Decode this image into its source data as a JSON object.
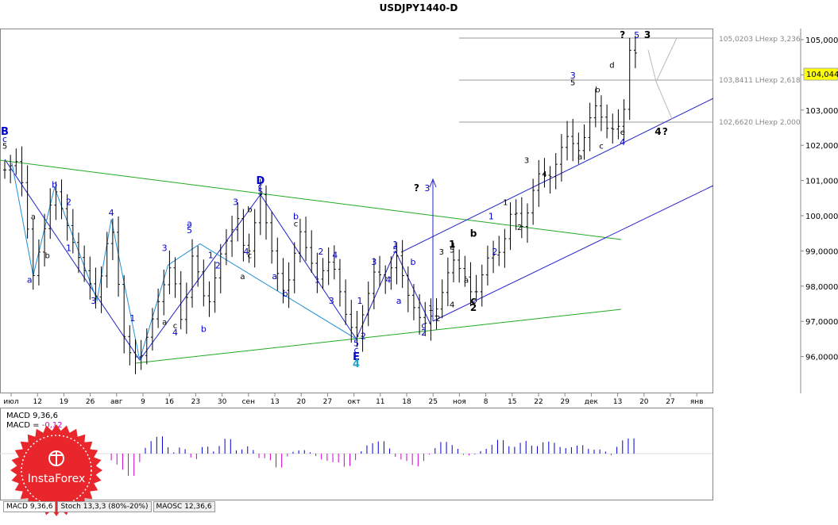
{
  "title": "USDJPY1440-D",
  "price_labels": [
    "105,0000",
    "104,0000",
    "103,0000",
    "102,0000",
    "101,0000",
    "100,0000",
    "99,0000",
    "98,0000",
    "97,0000",
    "96,0000"
  ],
  "current_price": "104,044",
  "date_labels": [
    "июл",
    "12",
    "19",
    "26",
    "авг",
    "9",
    "16",
    "23",
    "30",
    "сен",
    "13",
    "20",
    "27",
    "окт",
    "11",
    "18",
    "25",
    "ноя",
    "8",
    "15",
    "22",
    "29",
    "дек",
    "13",
    "20",
    "27",
    "янв"
  ],
  "fib_levels": [
    {
      "label": "105,0203 LНexp 3,236",
      "price": 105.0203
    },
    {
      "label": "103,8411 LНexp 2,618",
      "price": 103.8411
    },
    {
      "label": "102,6620 LНexp 2,000",
      "price": 102.662
    }
  ],
  "macd": {
    "line1": "MACD 9,36,6",
    "line2_prefix": "MACD = ",
    "line2_value": "-0,12"
  },
  "tabs": [
    "MACD 9,36,6",
    "Stoch 13,3,3 (80%-20%)",
    "MAOSC 12,36,6"
  ],
  "logo_text": "InstaForex",
  "colors": {
    "accent": "#cc0000",
    "wave": "#0000cc",
    "zigzag": "#1f8fd6",
    "trend_green": "#22aa22",
    "up_bar": "#0000cc",
    "down_bar": "#cc00cc"
  },
  "wave_labels": [
    {
      "t": "B",
      "d": 0,
      "p": 102.3,
      "c": "#0000cc",
      "s": 13
    },
    {
      "t": "c",
      "d": 0,
      "p": 102.1,
      "c": "#0000cc",
      "s": 11
    },
    {
      "t": "5",
      "d": 0,
      "p": 101.9,
      "c": "#000",
      "s": 10
    },
    {
      "t": "b",
      "d": 14,
      "p": 100.8,
      "c": "#0000cc",
      "s": 11
    },
    {
      "t": "2",
      "d": 18,
      "p": 100.3,
      "c": "#0000cc",
      "s": 11
    },
    {
      "t": "4",
      "d": 30,
      "p": 100.0,
      "c": "#0000cc",
      "s": 11
    },
    {
      "t": "a",
      "d": 8,
      "p": 99.9,
      "c": "#000",
      "s": 10
    },
    {
      "t": "b",
      "d": 12,
      "p": 98.8,
      "c": "#000",
      "s": 10
    },
    {
      "t": "1",
      "d": 18,
      "p": 99.0,
      "c": "#0000cc",
      "s": 11
    },
    {
      "t": "a",
      "d": 7,
      "p": 98.1,
      "c": "#0000cc",
      "s": 11
    },
    {
      "t": "3",
      "d": 25,
      "p": 97.5,
      "c": "#0000cc",
      "s": 11
    },
    {
      "t": "1",
      "d": 36,
      "p": 97.0,
      "c": "#0000cc",
      "s": 11
    },
    {
      "t": "3",
      "d": 45,
      "p": 99.0,
      "c": "#0000cc",
      "s": 11
    },
    {
      "t": "a",
      "d": 45,
      "p": 96.9,
      "c": "#000",
      "s": 10
    },
    {
      "t": "c",
      "d": 48,
      "p": 96.8,
      "c": "#000",
      "s": 10
    },
    {
      "t": "4",
      "d": 48,
      "p": 96.6,
      "c": "#0000cc",
      "s": 11
    },
    {
      "t": "a",
      "d": 52,
      "p": 99.7,
      "c": "#0000cc",
      "s": 11
    },
    {
      "t": "5",
      "d": 52,
      "p": 99.5,
      "c": "#0000cc",
      "s": 11
    },
    {
      "t": "1",
      "d": 58,
      "p": 98.8,
      "c": "#0000cc",
      "s": 11
    },
    {
      "t": "b",
      "d": 56,
      "p": 96.7,
      "c": "#0000cc",
      "s": 11
    },
    {
      "t": "2",
      "d": 60,
      "p": 98.5,
      "c": "#0000cc",
      "s": 11
    },
    {
      "t": "3",
      "d": 65,
      "p": 100.3,
      "c": "#0000cc",
      "s": 11
    },
    {
      "t": "4",
      "d": 68,
      "p": 98.9,
      "c": "#0000cc",
      "s": 11
    },
    {
      "t": "a",
      "d": 67,
      "p": 98.2,
      "c": "#000",
      "s": 10
    },
    {
      "t": "b",
      "d": 69,
      "p": 100.1,
      "c": "#000",
      "s": 10
    },
    {
      "t": "c",
      "d": 69,
      "p": 98.8,
      "c": "#000",
      "s": 10
    },
    {
      "t": "D",
      "d": 72,
      "p": 100.9,
      "c": "#0000cc",
      "s": 13
    },
    {
      "t": "c",
      "d": 72,
      "p": 100.75,
      "c": "#0000cc",
      "s": 11
    },
    {
      "t": "5",
      "d": 72,
      "p": 100.6,
      "c": "#0000cc",
      "s": 11
    },
    {
      "t": "a",
      "d": 76,
      "p": 98.2,
      "c": "#0000cc",
      "s": 11
    },
    {
      "t": "b",
      "d": 82,
      "p": 99.9,
      "c": "#0000cc",
      "s": 11
    },
    {
      "t": "c",
      "d": 82,
      "p": 99.7,
      "c": "#000",
      "s": 10
    },
    {
      "t": "b",
      "d": 79,
      "p": 97.7,
      "c": "#0000cc",
      "s": 11
    },
    {
      "t": "1",
      "d": 88,
      "p": 98.1,
      "c": "#0000cc",
      "s": 11
    },
    {
      "t": "2",
      "d": 89,
      "p": 98.9,
      "c": "#0000cc",
      "s": 11
    },
    {
      "t": "4",
      "d": 93,
      "p": 98.8,
      "c": "#0000cc",
      "s": 11
    },
    {
      "t": "3",
      "d": 92,
      "p": 97.5,
      "c": "#0000cc",
      "s": 11
    },
    {
      "t": "5",
      "d": 99,
      "p": 96.3,
      "c": "#0000cc",
      "s": 11
    },
    {
      "t": "c",
      "d": 99,
      "p": 96.1,
      "c": "#0000cc",
      "s": 11
    },
    {
      "t": "E",
      "d": 99,
      "p": 95.9,
      "c": "#0000cc",
      "s": 13
    },
    {
      "t": "4",
      "d": 99,
      "p": 95.7,
      "c": "#22a0c8",
      "s": 13
    },
    {
      "t": "1",
      "d": 100,
      "p": 97.5,
      "c": "#0000cc",
      "s": 11
    },
    {
      "t": "2",
      "d": 101,
      "p": 96.5,
      "c": "#0000cc",
      "s": 11
    },
    {
      "t": "3",
      "d": 104,
      "p": 98.6,
      "c": "#0000cc",
      "s": 11
    },
    {
      "t": "4",
      "d": 108,
      "p": 98.1,
      "c": "#0000cc",
      "s": 11
    },
    {
      "t": "1",
      "d": 110,
      "p": 99.1,
      "c": "#0000cc",
      "s": 11
    },
    {
      "t": "5",
      "d": 110,
      "p": 98.95,
      "c": "#0000cc",
      "s": 11
    },
    {
      "t": "a",
      "d": 111,
      "p": 97.5,
      "c": "#0000cc",
      "s": 11
    },
    {
      "t": "b",
      "d": 115,
      "p": 98.6,
      "c": "#0000cc",
      "s": 11
    },
    {
      "t": "?",
      "d": 116,
      "p": 100.7,
      "c": "#000",
      "s": 12
    },
    {
      "t": "3",
      "d": 119,
      "p": 100.7,
      "c": "#0000cc",
      "s": 11
    },
    {
      "t": "1",
      "d": 120,
      "p": 97.3,
      "c": "#000",
      "s": 10
    },
    {
      "t": "2",
      "d": 122,
      "p": 97.0,
      "c": "#000",
      "s": 10
    },
    {
      "t": "c",
      "d": 118,
      "p": 96.8,
      "c": "#0000cc",
      "s": 11
    },
    {
      "t": "2",
      "d": 118,
      "p": 96.6,
      "c": "#0000cc",
      "s": 11
    },
    {
      "t": "3",
      "d": 123,
      "p": 98.9,
      "c": "#000",
      "s": 10
    },
    {
      "t": "1",
      "d": 126,
      "p": 99.1,
      "c": "#000",
      "s": 12
    },
    {
      "t": "5",
      "d": 126,
      "p": 98.95,
      "c": "#000",
      "s": 10
    },
    {
      "t": "4",
      "d": 126,
      "p": 97.4,
      "c": "#000",
      "s": 10
    },
    {
      "t": "a",
      "d": 130,
      "p": 98.1,
      "c": "#000",
      "s": 10
    },
    {
      "t": "b",
      "d": 132,
      "p": 99.4,
      "c": "#000",
      "s": 12
    },
    {
      "t": "c",
      "d": 132,
      "p": 97.5,
      "c": "#000",
      "s": 12
    },
    {
      "t": "2",
      "d": 132,
      "p": 97.3,
      "c": "#000",
      "s": 12
    },
    {
      "t": "1",
      "d": 137,
      "p": 99.9,
      "c": "#0000cc",
      "s": 11
    },
    {
      "t": "2",
      "d": 138,
      "p": 98.9,
      "c": "#0000cc",
      "s": 11
    },
    {
      "t": "1",
      "d": 141,
      "p": 100.3,
      "c": "#000",
      "s": 10
    },
    {
      "t": "2",
      "d": 145,
      "p": 99.6,
      "c": "#000",
      "s": 10
    },
    {
      "t": "3",
      "d": 147,
      "p": 101.5,
      "c": "#000",
      "s": 10
    },
    {
      "t": "4",
      "d": 152,
      "p": 101.1,
      "c": "#000",
      "s": 10
    },
    {
      "t": "3",
      "d": 160,
      "p": 103.9,
      "c": "#0000cc",
      "s": 11
    },
    {
      "t": "5",
      "d": 160,
      "p": 103.7,
      "c": "#000",
      "s": 10
    },
    {
      "t": "a",
      "d": 162,
      "p": 101.6,
      "c": "#000",
      "s": 10
    },
    {
      "t": "b",
      "d": 167,
      "p": 103.5,
      "c": "#000",
      "s": 10
    },
    {
      "t": "c",
      "d": 168,
      "p": 101.9,
      "c": "#000",
      "s": 10
    },
    {
      "t": "d",
      "d": 171,
      "p": 104.2,
      "c": "#000",
      "s": 10
    },
    {
      "t": "e",
      "d": 174,
      "p": 102.3,
      "c": "#000",
      "s": 10
    },
    {
      "t": "4",
      "d": 174,
      "p": 102.0,
      "c": "#0000cc",
      "s": 11
    },
    {
      "t": "?",
      "d": 174,
      "p": 105.05,
      "c": "#000",
      "s": 12
    },
    {
      "t": "5",
      "d": 178,
      "p": 105.05,
      "c": "#0000cc",
      "s": 11
    },
    {
      "t": "3",
      "d": 181,
      "p": 105.05,
      "c": "#000",
      "s": 12
    },
    {
      "t": "4",
      "d": 184,
      "p": 102.3,
      "c": "#000",
      "s": 12
    },
    {
      "t": "?",
      "d": 186,
      "p": 102.3,
      "c": "#000",
      "s": 12
    }
  ]
}
